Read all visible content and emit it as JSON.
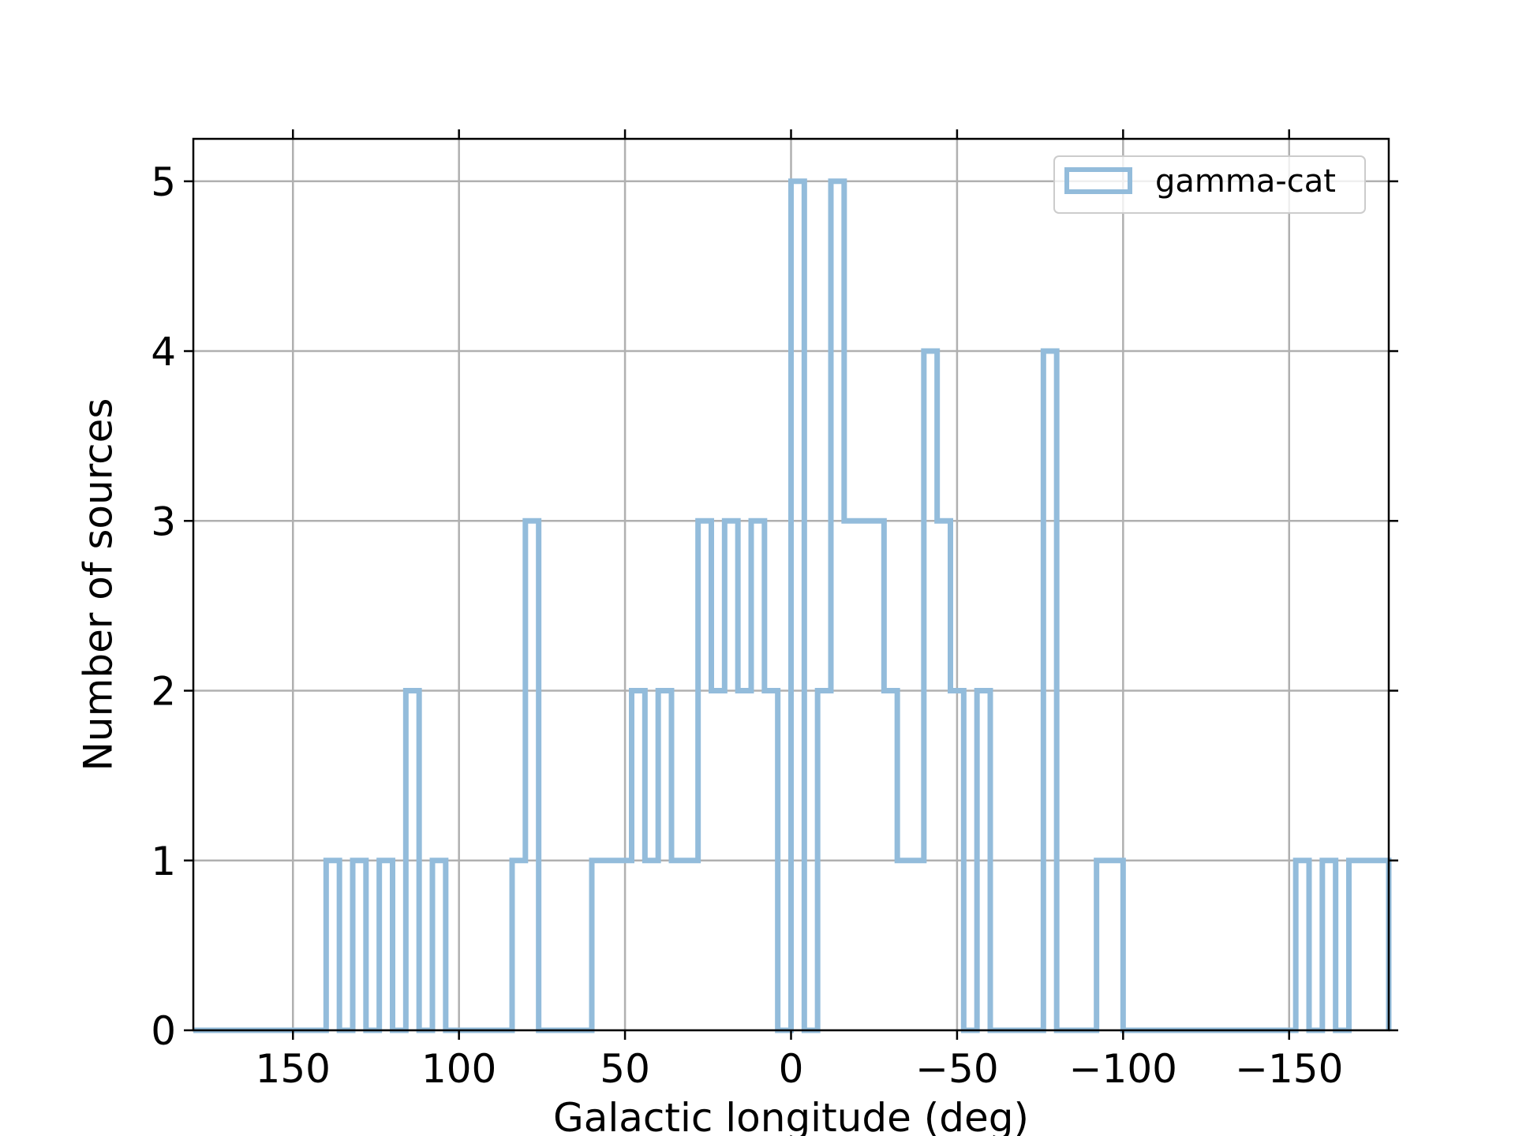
{
  "chart_data": {
    "type": "histogram",
    "xlabel": "Galactic longitude (deg)",
    "ylabel": "Number of sources",
    "xlim": [
      180,
      -180
    ],
    "ylim": [
      0,
      5.25
    ],
    "x_reversed": true,
    "grid": true,
    "legend_placement": "top-right",
    "xticks": [
      150,
      100,
      50,
      0,
      -50,
      -100,
      -150
    ],
    "xtick_labels": [
      "150",
      "100",
      "50",
      "0",
      "−50",
      "−100",
      "−150"
    ],
    "yticks": [
      0,
      1,
      2,
      3,
      4,
      5
    ],
    "ytick_labels": [
      "0",
      "1",
      "2",
      "3",
      "4",
      "5"
    ],
    "bin_edges": [
      180,
      176,
      172,
      168,
      164,
      160,
      156,
      152,
      148,
      144,
      140,
      136,
      132,
      128,
      124,
      120,
      116,
      112,
      108,
      104,
      100,
      96,
      92,
      88,
      84,
      80,
      76,
      72,
      68,
      64,
      60,
      56,
      52,
      48,
      44,
      40,
      36,
      32,
      28,
      24,
      20,
      16,
      12,
      8,
      4,
      0,
      -4,
      -8,
      -12,
      -16,
      -20,
      -24,
      -28,
      -32,
      -36,
      -40,
      -44,
      -48,
      -52,
      -56,
      -60,
      -64,
      -68,
      -72,
      -76,
      -80,
      -84,
      -88,
      -92,
      -96,
      -100,
      -104,
      -108,
      -112,
      -116,
      -120,
      -124,
      -128,
      -132,
      -136,
      -140,
      -144,
      -148,
      -152,
      -156,
      -160,
      -164,
      -168,
      -172,
      -176,
      -180
    ],
    "series": [
      {
        "name": "gamma-cat",
        "color": "#93bcdb",
        "counts": [
          0,
          0,
          0,
          0,
          0,
          0,
          0,
          0,
          0,
          0,
          1,
          0,
          1,
          0,
          1,
          0,
          2,
          0,
          1,
          0,
          0,
          0,
          0,
          0,
          1,
          3,
          0,
          0,
          0,
          0,
          1,
          1,
          1,
          2,
          1,
          2,
          1,
          1,
          3,
          2,
          3,
          2,
          3,
          2,
          0,
          5,
          0,
          2,
          5,
          3,
          3,
          3,
          2,
          1,
          1,
          4,
          3,
          2,
          0,
          2,
          0,
          0,
          0,
          0,
          4,
          0,
          0,
          0,
          1,
          1,
          0,
          0,
          0,
          0,
          0,
          0,
          0,
          0,
          0,
          0,
          0,
          0,
          0,
          1,
          0,
          1,
          0,
          1,
          1,
          1
        ]
      }
    ]
  }
}
